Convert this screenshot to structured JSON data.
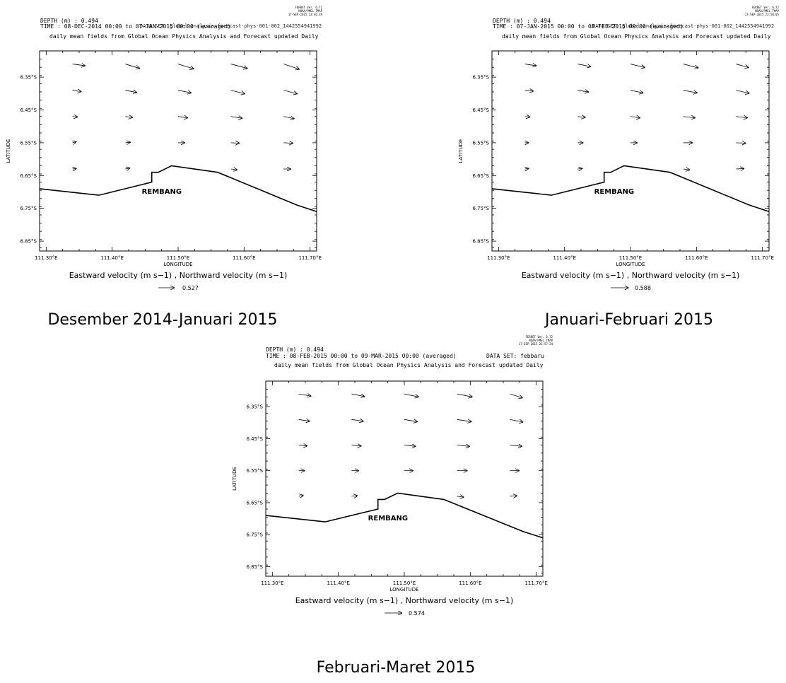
{
  "ferret_stamp": [
    "FERRET Ver. 6.72",
    "NOAA/PMEL TMAP"
  ],
  "panels": [
    {
      "depth_label": "DEPTH (m) : 0.494",
      "time_label": "TIME : 08-DEC-2014 00:00 to 07-JAN-2015 00:00 (averaged)",
      "dataset_label": "DATA SET: global-analysis-forecast-phys-001-002_1442554941992",
      "stamp_date": "17-SEP-2015 23:46:39",
      "subtitle": "daily mean fields from Global Ocean Physics Analysis and Forecast updated Daily",
      "place_label": "REMBANG",
      "ylabel": "LATITUDE",
      "xlabel": "LONGITUDE",
      "vector_title": "Eastward velocity (m s−1) , Northward velocity (m s−1)",
      "ref_value": "0.527",
      "caption": "Desember 2014-Januari 2015"
    },
    {
      "depth_label": "DEPTH (m) : 0.494",
      "time_label": "TIME : 07-JAN-2015 00:00 to 08-FEB-2015 00:00 (averaged)",
      "dataset_label": "DATA SET: global-analysis-forecast-phys-001-002_1442554941992",
      "stamp_date": "17-SEP-2015 23:50:05",
      "subtitle": "daily mean fields from Global Ocean Physics Analysis and Forecast updated Daily",
      "place_label": "REMBANG",
      "ylabel": "LATITUDE",
      "xlabel": "LONGITUDE",
      "vector_title": "Eastward velocity (m s−1) , Northward velocity (m s−1)",
      "ref_value": "0.588",
      "caption": "Januari-Februari 2015"
    },
    {
      "depth_label": "DEPTH (m) : 0.494",
      "time_label": "TIME : 08-FEB-2015 00:00 to 09-MAR-2015 00:00 (averaged)",
      "dataset_label": "DATA SET: febbaru",
      "stamp_date": "17-SEP-2015 23:57:34",
      "subtitle": "daily mean fields from Global Ocean Physics Analysis and Forecast updated Daily",
      "place_label": "REMBANG",
      "ylabel": "LATITUDE",
      "xlabel": "LONGITUDE",
      "vector_title": "Eastward velocity (m s−1) , Northward velocity (m s−1)",
      "ref_value": "0.574",
      "caption": "Februari-Maret 2015"
    }
  ],
  "chart_data": [
    {
      "type": "vector-field",
      "x_ticks": [
        "111.30°E",
        "111.40°E",
        "111.50°E",
        "111.60°E",
        "111.70°E"
      ],
      "y_ticks": [
        "6.35°S",
        "6.45°S",
        "6.55°S",
        "6.65°S",
        "6.75°S",
        "6.85°S"
      ],
      "xlim": [
        111.29,
        111.71
      ],
      "ylim": [
        -6.88,
        -6.27
      ],
      "arrow_lons": [
        111.34,
        111.42,
        111.5,
        111.58,
        111.66
      ],
      "arrow_lats": [
        -6.31,
        -6.39,
        -6.47,
        -6.55,
        -6.63
      ],
      "u": [
        [
          0.29,
          0.33,
          0.36,
          0.38,
          0.36
        ],
        [
          0.2,
          0.26,
          0.3,
          0.32,
          0.31
        ],
        [
          0.11,
          0.16,
          0.22,
          0.26,
          0.24
        ],
        [
          0.08,
          0.11,
          0.15,
          0.19,
          0.21
        ],
        [
          0.08,
          0.1,
          0.0,
          0.14,
          0.16
        ]
      ],
      "v": [
        [
          -0.04,
          -0.1,
          -0.11,
          -0.1,
          -0.12
        ],
        [
          -0.03,
          -0.05,
          -0.06,
          -0.08,
          -0.08
        ],
        [
          -0.01,
          -0.02,
          -0.03,
          -0.04,
          -0.05
        ],
        [
          0.02,
          0.01,
          0.0,
          -0.01,
          -0.01
        ],
        [
          0.01,
          0.02,
          0.0,
          -0.02,
          0.0
        ]
      ],
      "reference_vector": 0.527,
      "coastline": [
        [
          111.29,
          -6.69
        ],
        [
          111.38,
          -6.71
        ],
        [
          111.46,
          -6.67
        ],
        [
          111.46,
          -6.64
        ],
        [
          111.47,
          -6.64
        ],
        [
          111.49,
          -6.62
        ],
        [
          111.56,
          -6.64
        ],
        [
          111.68,
          -6.74
        ],
        [
          111.71,
          -6.76
        ]
      ]
    },
    {
      "type": "vector-field",
      "x_ticks": [
        "111.30°E",
        "111.40°E",
        "111.50°E",
        "111.60°E",
        "111.70°E"
      ],
      "y_ticks": [
        "6.35°S",
        "6.45°S",
        "6.55°S",
        "6.65°S",
        "6.75°S",
        "6.85°S"
      ],
      "xlim": [
        111.29,
        111.71
      ],
      "ylim": [
        -6.88,
        -6.27
      ],
      "arrow_lons": [
        111.34,
        111.42,
        111.5,
        111.58,
        111.66
      ],
      "arrow_lats": [
        -6.31,
        -6.39,
        -6.47,
        -6.55,
        -6.63
      ],
      "u": [
        [
          0.26,
          0.3,
          0.33,
          0.35,
          0.29
        ],
        [
          0.19,
          0.25,
          0.29,
          0.32,
          0.3
        ],
        [
          0.11,
          0.17,
          0.22,
          0.27,
          0.26
        ],
        [
          0.08,
          0.12,
          0.15,
          0.21,
          0.22
        ],
        [
          0.08,
          0.1,
          0.0,
          0.14,
          0.18
        ]
      ],
      "v": [
        [
          -0.04,
          -0.06,
          -0.08,
          -0.09,
          -0.08
        ],
        [
          -0.02,
          -0.04,
          -0.06,
          -0.06,
          -0.07
        ],
        [
          -0.01,
          -0.02,
          -0.03,
          -0.03,
          -0.03
        ],
        [
          0.0,
          0.0,
          0.0,
          0.0,
          -0.01
        ],
        [
          0.01,
          0.01,
          0.0,
          -0.02,
          0.01
        ]
      ],
      "reference_vector": 0.588,
      "coastline": [
        [
          111.29,
          -6.69
        ],
        [
          111.38,
          -6.71
        ],
        [
          111.46,
          -6.67
        ],
        [
          111.46,
          -6.64
        ],
        [
          111.47,
          -6.64
        ],
        [
          111.49,
          -6.62
        ],
        [
          111.56,
          -6.64
        ],
        [
          111.68,
          -6.74
        ],
        [
          111.71,
          -6.76
        ]
      ]
    },
    {
      "type": "vector-field",
      "x_ticks": [
        "111.30°E",
        "111.40°E",
        "111.50°E",
        "111.60°E",
        "111.70°E"
      ],
      "y_ticks": [
        "6.35°S",
        "6.45°S",
        "6.55°S",
        "6.65°S",
        "6.75°S",
        "6.85°S"
      ],
      "xlim": [
        111.29,
        111.71
      ],
      "ylim": [
        -6.88,
        -6.27
      ],
      "arrow_lons": [
        111.34,
        111.42,
        111.5,
        111.58,
        111.66
      ],
      "arrow_lats": [
        -6.31,
        -6.39,
        -6.47,
        -6.55,
        -6.63
      ],
      "u": [
        [
          0.28,
          0.3,
          0.33,
          0.35,
          0.29
        ],
        [
          0.25,
          0.27,
          0.3,
          0.33,
          0.3
        ],
        [
          0.19,
          0.22,
          0.26,
          0.29,
          0.28
        ],
        [
          0.13,
          0.16,
          0.2,
          0.23,
          0.21
        ],
        [
          0.1,
          0.13,
          0.0,
          0.15,
          0.16
        ]
      ],
      "v": [
        [
          -0.05,
          -0.06,
          -0.07,
          -0.07,
          -0.09
        ],
        [
          -0.04,
          -0.04,
          -0.05,
          -0.05,
          -0.06
        ],
        [
          -0.02,
          -0.02,
          -0.03,
          -0.03,
          -0.03
        ],
        [
          0.0,
          0.0,
          0.0,
          0.0,
          0.0
        ],
        [
          0.02,
          0.01,
          0.0,
          -0.02,
          0.01
        ]
      ],
      "reference_vector": 0.574,
      "coastline": [
        [
          111.29,
          -6.69
        ],
        [
          111.38,
          -6.71
        ],
        [
          111.46,
          -6.67
        ],
        [
          111.46,
          -6.64
        ],
        [
          111.47,
          -6.64
        ],
        [
          111.49,
          -6.62
        ],
        [
          111.56,
          -6.64
        ],
        [
          111.68,
          -6.74
        ],
        [
          111.71,
          -6.76
        ]
      ]
    }
  ]
}
